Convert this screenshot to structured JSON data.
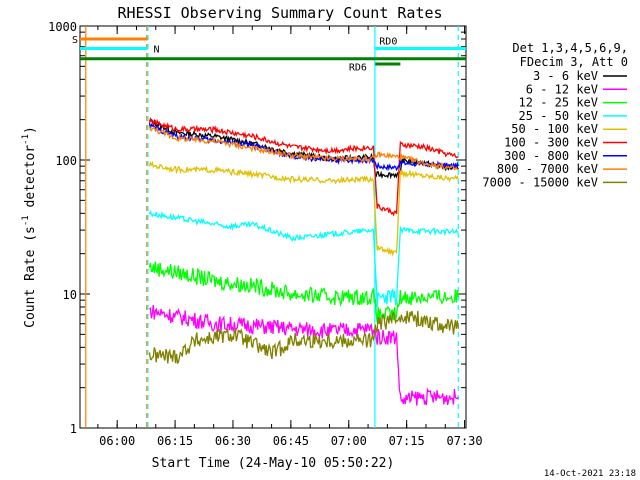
{
  "chart_data": {
    "type": "line",
    "title": "RHESSI Observing Summary Count Rates",
    "xlabel": "Start Time (24-May-10 05:50:22)",
    "ylabel": "Count Rate (s-1 detector-1)",
    "ylabel_parts": {
      "pre": "Count Rate (s",
      "sup1": "-1",
      "mid": " detector",
      "sup2": "-1",
      "post": ")"
    },
    "yscale": "log",
    "ylim": [
      1,
      1000
    ],
    "xlim": [
      0,
      100
    ],
    "x_unit": "minutes after 05:50:22",
    "x_ticks": [
      {
        "label": "06:00",
        "value": 9.63
      },
      {
        "label": "06:15",
        "value": 24.63
      },
      {
        "label": "06:30",
        "value": 39.63
      },
      {
        "label": "06:45",
        "value": 54.63
      },
      {
        "label": "07:00",
        "value": 69.63
      },
      {
        "label": "07:15",
        "value": 84.63
      },
      {
        "label": "07:30",
        "value": 99.63
      }
    ],
    "y_ticks": [
      {
        "label": "1",
        "value": 1
      },
      {
        "label": "10",
        "value": 10
      },
      {
        "label": "100",
        "value": 100
      },
      {
        "label": "1000",
        "value": 1000
      }
    ],
    "legend_header": [
      "Det 1,3,4,5,6,9,",
      "FDecim 3, Att 0"
    ],
    "legend_position": "right",
    "timestamp": "14-Oct-2021 23:18",
    "flags": [
      {
        "label": "S",
        "color": "#ff7f00",
        "y": 800,
        "x0": 0,
        "x1": 17.5
      },
      {
        "label": "N",
        "color": "#00ffff",
        "y": 680,
        "x0": 0,
        "x1": 17.5
      },
      {
        "label": "RD0",
        "color": "#00ffff",
        "y": 680,
        "x0": 76.5,
        "x1": 100
      },
      {
        "label": "RD6",
        "color": "#008000",
        "y": 570,
        "x0": 0,
        "x1": 100
      },
      {
        "label": "",
        "color": "#008000",
        "y": 520,
        "x0": 76.5,
        "x1": 83
      }
    ],
    "vlines": [
      {
        "x": 1.5,
        "color": "#ff7f00",
        "style": "solid"
      },
      {
        "x": 17.3,
        "color": "#ff7f00",
        "style": "dash"
      },
      {
        "x": 17.6,
        "color": "#00ffff",
        "style": "dash"
      },
      {
        "x": 76.4,
        "color": "#00ffff",
        "style": "solid"
      },
      {
        "x": 98.0,
        "color": "#00ffff",
        "style": "dash"
      }
    ],
    "series": [
      {
        "name": "3 - 6 keV",
        "color": "#000000",
        "points": [
          [
            18,
            195
          ],
          [
            25,
            160
          ],
          [
            35,
            150
          ],
          [
            45,
            132
          ],
          [
            55,
            112
          ],
          [
            65,
            102
          ],
          [
            76,
            105
          ],
          [
            76.5,
            78
          ],
          [
            83,
            78
          ],
          [
            83.5,
            100
          ],
          [
            89,
            95
          ],
          [
            98,
            85
          ]
        ]
      },
      {
        "name": "6 - 12 keV",
        "color": "#ff00ff",
        "points": [
          [
            18,
            7.5
          ],
          [
            25,
            6.8
          ],
          [
            35,
            6.0
          ],
          [
            45,
            5.8
          ],
          [
            55,
            5.5
          ],
          [
            65,
            5.3
          ],
          [
            76,
            5.5
          ],
          [
            77,
            4.8
          ],
          [
            82,
            4.8
          ],
          [
            83,
            1.6
          ],
          [
            88,
            1.7
          ],
          [
            98,
            1.7
          ]
        ]
      },
      {
        "name": "12 - 25 keV",
        "color": "#00ff00",
        "points": [
          [
            18,
            16
          ],
          [
            25,
            14.5
          ],
          [
            35,
            12.5
          ],
          [
            45,
            11.5
          ],
          [
            55,
            10
          ],
          [
            65,
            9.5
          ],
          [
            76,
            9.5
          ],
          [
            77,
            7
          ],
          [
            82,
            7
          ],
          [
            83,
            9.5
          ],
          [
            98,
            9.5
          ]
        ]
      },
      {
        "name": "25 - 50 keV",
        "color": "#00ffff",
        "points": [
          [
            18,
            40
          ],
          [
            25,
            37
          ],
          [
            30,
            35
          ],
          [
            38,
            32
          ],
          [
            45,
            33
          ],
          [
            55,
            26
          ],
          [
            65,
            28
          ],
          [
            76,
            30
          ],
          [
            77,
            9
          ],
          [
            82,
            9.5
          ],
          [
            83,
            30
          ],
          [
            98,
            29
          ]
        ]
      },
      {
        "name": "50 - 100 keV",
        "color": "#e0c000",
        "points": [
          [
            18,
            92
          ],
          [
            25,
            85
          ],
          [
            35,
            84
          ],
          [
            45,
            78
          ],
          [
            55,
            72
          ],
          [
            65,
            70
          ],
          [
            76,
            72
          ],
          [
            77,
            22
          ],
          [
            82,
            20
          ],
          [
            83,
            80
          ],
          [
            98,
            72
          ]
        ]
      },
      {
        "name": "100 - 300 keV",
        "color": "#ff0000",
        "points": [
          [
            18,
            195
          ],
          [
            25,
            170
          ],
          [
            35,
            168
          ],
          [
            45,
            150
          ],
          [
            55,
            125
          ],
          [
            65,
            118
          ],
          [
            76,
            125
          ],
          [
            77,
            45
          ],
          [
            82,
            40
          ],
          [
            83,
            130
          ],
          [
            89,
            125
          ],
          [
            98,
            105
          ]
        ]
      },
      {
        "name": "300 - 800 keV",
        "color": "#0000ff",
        "points": [
          [
            18,
            180
          ],
          [
            25,
            150
          ],
          [
            35,
            140
          ],
          [
            45,
            128
          ],
          [
            55,
            105
          ],
          [
            65,
            100
          ],
          [
            76,
            100
          ],
          [
            77,
            90
          ],
          [
            82,
            88
          ],
          [
            83,
            95
          ],
          [
            98,
            90
          ]
        ]
      },
      {
        "name": "800 - 7000 keV",
        "color": "#ff7f00",
        "points": [
          [
            18,
            175
          ],
          [
            25,
            145
          ],
          [
            35,
            138
          ],
          [
            45,
            122
          ],
          [
            55,
            108
          ],
          [
            65,
            102
          ],
          [
            76,
            102
          ],
          [
            77,
            110
          ],
          [
            83,
            105
          ],
          [
            89,
            95
          ],
          [
            98,
            85
          ]
        ]
      },
      {
        "name": "7000 - 15000 keV",
        "color": "#808000",
        "points": [
          [
            18,
            3.5
          ],
          [
            25,
            3.4
          ],
          [
            30,
            4.5
          ],
          [
            40,
            5.0
          ],
          [
            45,
            4.2
          ],
          [
            50,
            3.6
          ],
          [
            55,
            4.5
          ],
          [
            65,
            4.5
          ],
          [
            76,
            4.5
          ],
          [
            77,
            6
          ],
          [
            82,
            6.5
          ],
          [
            83,
            7
          ],
          [
            98,
            5.5
          ]
        ]
      }
    ]
  }
}
